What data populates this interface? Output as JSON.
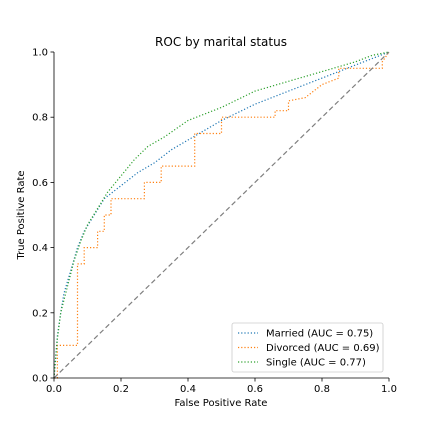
{
  "chart_data": {
    "type": "line",
    "title": "ROC by marital status",
    "xlabel": "False Positive Rate",
    "ylabel": "True Positive Rate",
    "xlim": [
      0.0,
      1.0
    ],
    "ylim": [
      0.0,
      1.0
    ],
    "xticks": [
      "0.0",
      "0.2",
      "0.4",
      "0.6",
      "0.8",
      "1.0"
    ],
    "yticks": [
      "0.0",
      "0.2",
      "0.4",
      "0.6",
      "0.8",
      "1.0"
    ],
    "grid": false,
    "legend_position": "lower-right",
    "series": [
      {
        "name": "Married (AUC = 0.75)",
        "color": "#1f77b4",
        "style": "dotted",
        "x": [
          0.0,
          0.01,
          0.02,
          0.03,
          0.05,
          0.07,
          0.09,
          0.12,
          0.15,
          0.2,
          0.25,
          0.3,
          0.35,
          0.4,
          0.5,
          0.6,
          0.7,
          0.8,
          0.9,
          0.95,
          1.0
        ],
        "y": [
          0.0,
          0.13,
          0.2,
          0.26,
          0.33,
          0.4,
          0.45,
          0.5,
          0.55,
          0.59,
          0.63,
          0.66,
          0.7,
          0.73,
          0.79,
          0.84,
          0.88,
          0.92,
          0.96,
          0.98,
          1.0
        ]
      },
      {
        "name": "Divorced (AUC = 0.69)",
        "color": "#ff7f0e",
        "style": "dotted",
        "x": [
          0.0,
          0.01,
          0.01,
          0.07,
          0.07,
          0.09,
          0.09,
          0.13,
          0.13,
          0.15,
          0.15,
          0.17,
          0.17,
          0.27,
          0.27,
          0.32,
          0.32,
          0.42,
          0.42,
          0.5,
          0.5,
          0.66,
          0.66,
          0.7,
          0.7,
          0.75,
          0.8,
          0.85,
          0.85,
          0.98,
          0.98,
          1.0
        ],
        "y": [
          0.0,
          0.0,
          0.1,
          0.1,
          0.35,
          0.35,
          0.4,
          0.4,
          0.45,
          0.45,
          0.5,
          0.5,
          0.55,
          0.55,
          0.6,
          0.6,
          0.65,
          0.65,
          0.75,
          0.75,
          0.8,
          0.8,
          0.82,
          0.82,
          0.85,
          0.86,
          0.9,
          0.92,
          0.95,
          0.95,
          0.97,
          1.0
        ]
      },
      {
        "name": "Single (AUC = 0.77)",
        "color": "#2ca02c",
        "style": "dotted",
        "x": [
          0.0,
          0.01,
          0.02,
          0.04,
          0.06,
          0.08,
          0.1,
          0.13,
          0.16,
          0.2,
          0.24,
          0.28,
          0.33,
          0.4,
          0.5,
          0.6,
          0.7,
          0.8,
          0.9,
          0.95,
          1.0
        ],
        "y": [
          0.0,
          0.12,
          0.2,
          0.28,
          0.36,
          0.42,
          0.47,
          0.52,
          0.57,
          0.62,
          0.67,
          0.71,
          0.74,
          0.79,
          0.83,
          0.88,
          0.91,
          0.94,
          0.97,
          0.99,
          1.0
        ]
      },
      {
        "name": "",
        "color": "#7f7f7f",
        "style": "dashed",
        "x": [
          0.0,
          1.0
        ],
        "y": [
          0.0,
          1.0
        ]
      }
    ]
  }
}
